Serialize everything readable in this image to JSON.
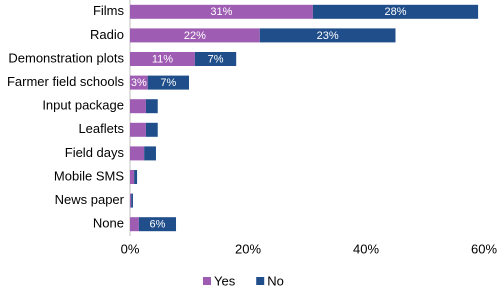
{
  "chart_data": {
    "type": "stacked-barh",
    "categories": [
      "Films",
      "Radio",
      "Demonstration plots",
      "Farmer field schools",
      "Input package",
      "Leaflets",
      "Field days",
      "Mobile SMS",
      "News paper",
      "None"
    ],
    "series": [
      {
        "name": "Yes",
        "color": "#9e5db3",
        "values": [
          31,
          22,
          11,
          3,
          2.7,
          2.7,
          2.4,
          0.7,
          0.2,
          1.5
        ],
        "value_labels": [
          "31%",
          "22%",
          "11%",
          "3%",
          null,
          null,
          null,
          null,
          null,
          null
        ]
      },
      {
        "name": "No",
        "color": "#1f4e8a",
        "values": [
          28,
          23,
          7,
          7,
          2.0,
          2.0,
          2.0,
          0.5,
          0.3,
          6.3
        ],
        "value_labels": [
          "28%",
          "23%",
          "7%",
          "7%",
          null,
          null,
          null,
          null,
          null,
          "6%"
        ]
      }
    ],
    "xlim": [
      0,
      60
    ],
    "xticks": [
      {
        "value": 0,
        "label": "0%"
      },
      {
        "value": 20,
        "label": "20%"
      },
      {
        "value": 40,
        "label": "40%"
      },
      {
        "value": 60,
        "label": "60%"
      }
    ],
    "legend": "bottom"
  }
}
